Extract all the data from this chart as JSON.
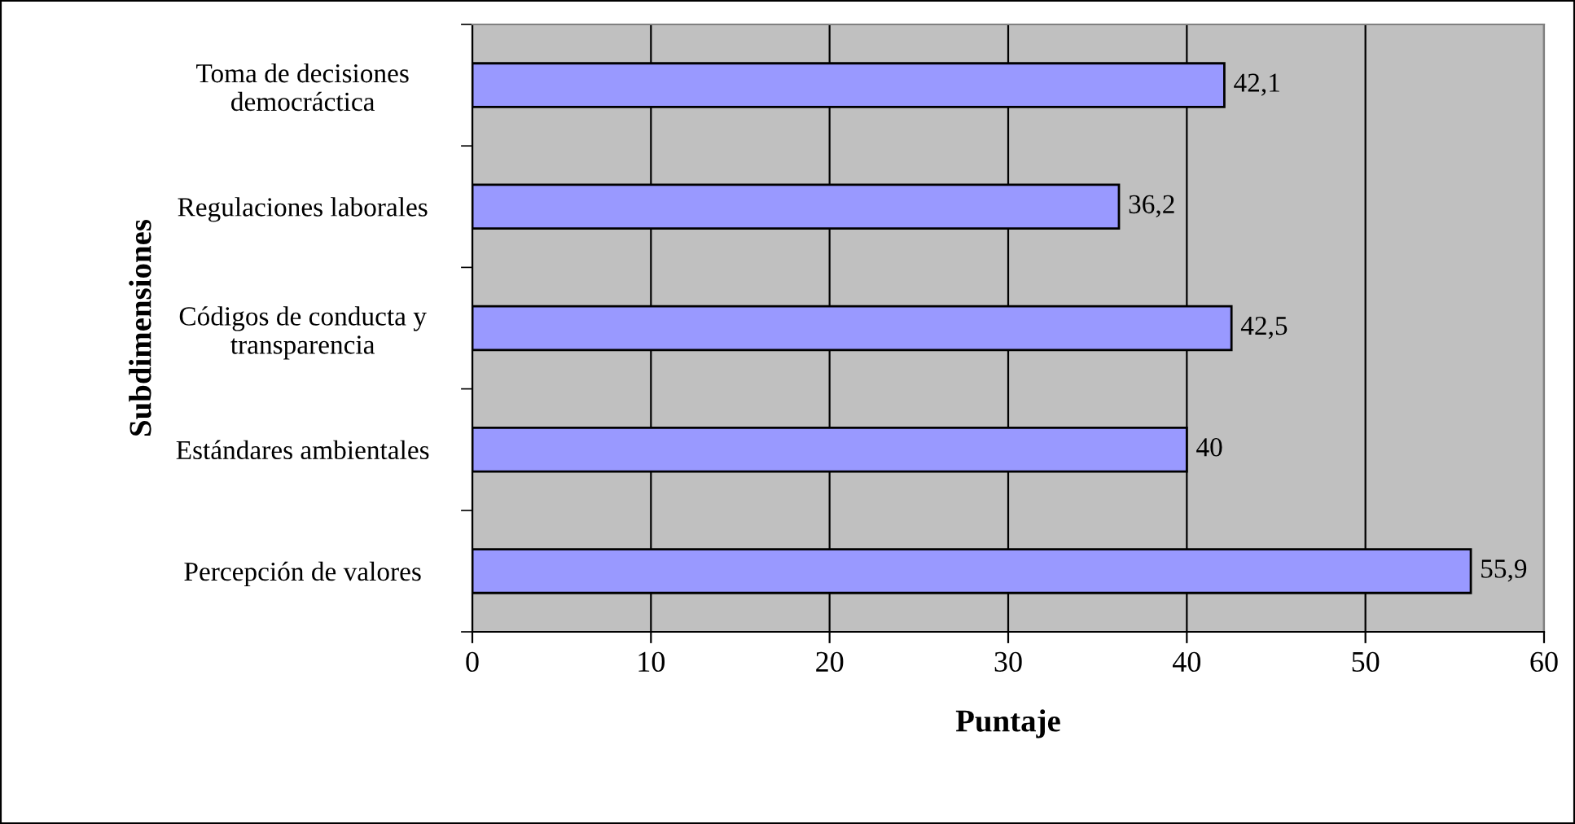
{
  "chart_data": {
    "type": "bar",
    "orientation": "horizontal",
    "categories": [
      "Toma de decisiones democráctica",
      "Regulaciones laborales",
      "Códigos de conducta y transparencia",
      "Estándares ambientales",
      "Percepción de valores"
    ],
    "values": [
      42.1,
      36.2,
      42.5,
      40,
      55.9
    ],
    "value_labels": [
      "42,1",
      "36,2",
      "42,5",
      "40",
      "55,9"
    ],
    "color": "#9999ff",
    "xlim": [
      0,
      60
    ],
    "xticks": [
      0,
      10,
      20,
      30,
      40,
      50,
      60
    ],
    "xlabel": "Puntaje",
    "ylabel": "Subdimensiones",
    "grid": "x",
    "legend": false
  }
}
